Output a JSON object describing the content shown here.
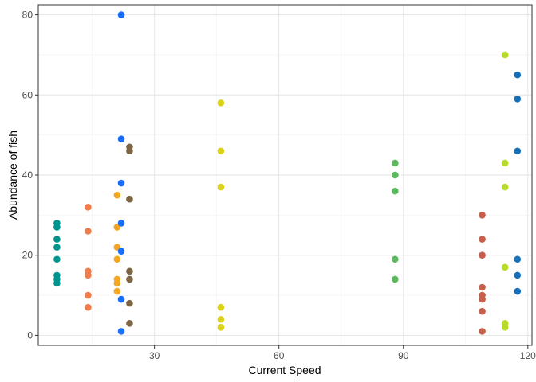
{
  "chart_data": {
    "type": "scatter",
    "title": "",
    "xlabel": "Current Speed",
    "ylabel": "Abundance of fish",
    "xlim": [
      2,
      121
    ],
    "ylim": [
      -2.5,
      82.5
    ],
    "x_ticks": [
      30,
      60,
      90,
      120
    ],
    "y_ticks": [
      0,
      20,
      40,
      60,
      80
    ],
    "x_minor": [
      15,
      45,
      75,
      105
    ],
    "y_minor": [
      10,
      30,
      50,
      70
    ],
    "grid": true,
    "legend": "none",
    "series": [
      {
        "color": "#00948F",
        "points": [
          [
            6.5,
            28
          ],
          [
            6.5,
            27
          ],
          [
            6.5,
            24
          ],
          [
            6.5,
            22
          ],
          [
            6.5,
            19
          ],
          [
            6.5,
            15
          ],
          [
            6.5,
            14
          ],
          [
            6.5,
            13
          ]
        ]
      },
      {
        "color": "#F07D4A",
        "points": [
          [
            14,
            32
          ],
          [
            14,
            26
          ],
          [
            14,
            16
          ],
          [
            14,
            15
          ],
          [
            14,
            10
          ],
          [
            14,
            7
          ]
        ]
      },
      {
        "color": "#F5A623",
        "points": [
          [
            21,
            35
          ],
          [
            21,
            27
          ],
          [
            21,
            22
          ],
          [
            21,
            19
          ],
          [
            21,
            14
          ],
          [
            21,
            13
          ],
          [
            21,
            11
          ]
        ]
      },
      {
        "color": "#1A6EF5",
        "points": [
          [
            22,
            80
          ],
          [
            22,
            49
          ],
          [
            22,
            38
          ],
          [
            22,
            28
          ],
          [
            22,
            21
          ],
          [
            22,
            9
          ],
          [
            22,
            1
          ]
        ]
      },
      {
        "color": "#7E6644",
        "points": [
          [
            24,
            47
          ],
          [
            24,
            46
          ],
          [
            24,
            34
          ],
          [
            24,
            16
          ],
          [
            24,
            14
          ],
          [
            24,
            8
          ],
          [
            24,
            3
          ]
        ]
      },
      {
        "color": "#DBD21A",
        "points": [
          [
            46,
            58
          ],
          [
            46,
            46
          ],
          [
            46,
            37
          ],
          [
            46,
            7
          ],
          [
            46,
            4
          ],
          [
            46,
            2
          ]
        ]
      },
      {
        "color": "#5CB85C",
        "points": [
          [
            88,
            43
          ],
          [
            88,
            40
          ],
          [
            88,
            36
          ],
          [
            88,
            19
          ],
          [
            88,
            14
          ]
        ]
      },
      {
        "color": "#C95F4B",
        "points": [
          [
            109,
            30
          ],
          [
            109,
            24
          ],
          [
            109,
            20
          ],
          [
            109,
            12
          ],
          [
            109,
            10
          ],
          [
            109,
            9
          ],
          [
            109,
            6
          ],
          [
            109,
            1
          ]
        ]
      },
      {
        "color": "#B8DB2A",
        "points": [
          [
            114.5,
            70
          ],
          [
            114.5,
            43
          ],
          [
            114.5,
            37
          ],
          [
            114.5,
            17
          ],
          [
            114.5,
            3
          ],
          [
            114.5,
            2
          ]
        ]
      },
      {
        "color": "#1470BC",
        "points": [
          [
            117.5,
            65
          ],
          [
            117.5,
            59
          ],
          [
            117.5,
            46
          ],
          [
            117.5,
            19
          ],
          [
            117.5,
            15
          ],
          [
            117.5,
            11
          ]
        ]
      }
    ]
  }
}
